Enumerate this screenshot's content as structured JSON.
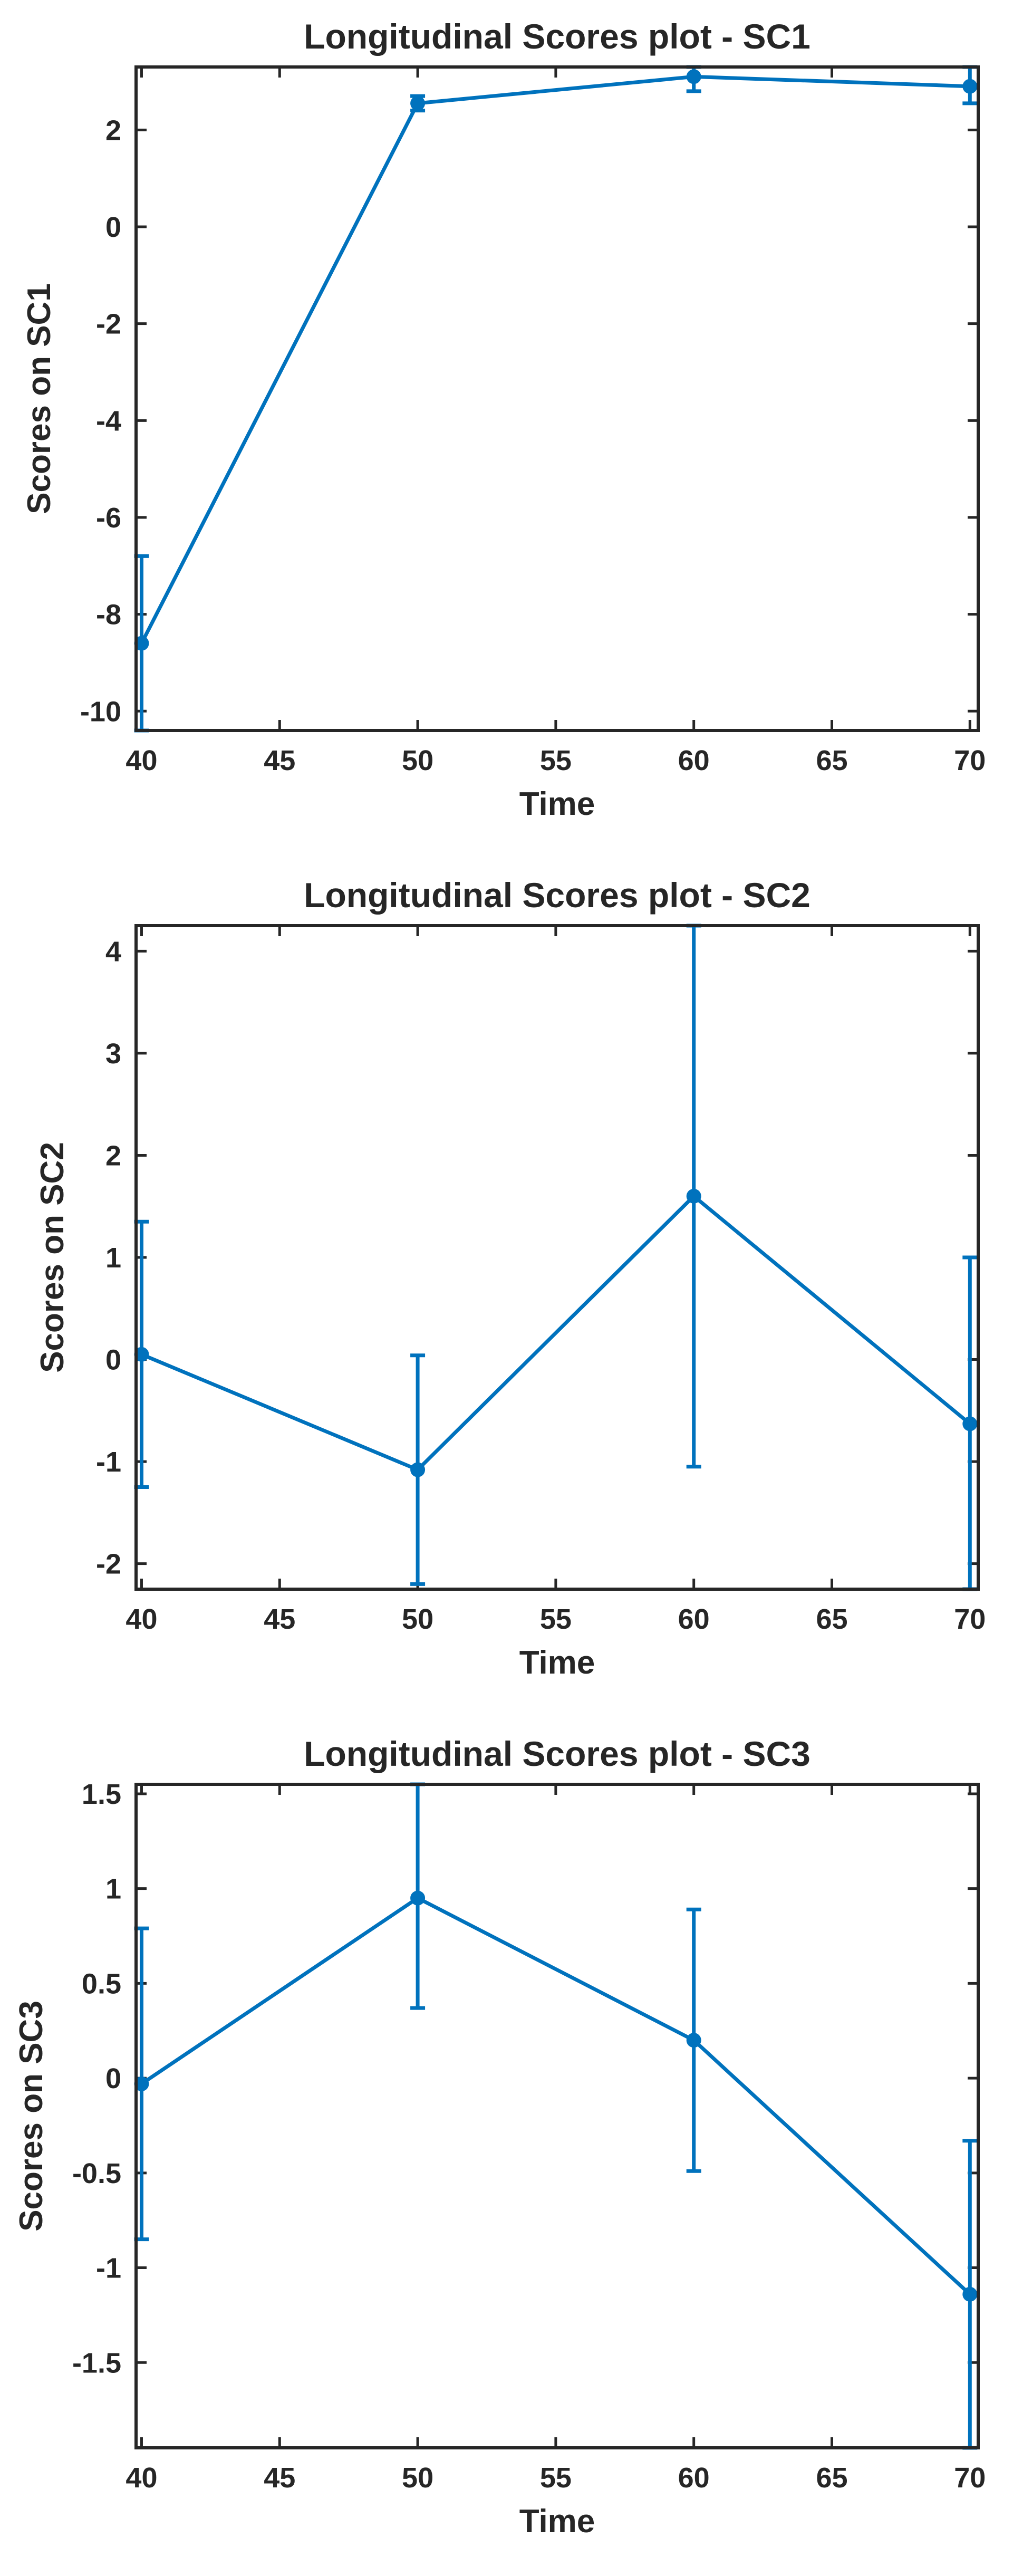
{
  "chart_data": [
    {
      "type": "line",
      "title": "Longitudinal Scores plot - SC1",
      "xlabel": "Time",
      "ylabel": "Scores on SC1",
      "xlim": [
        39.8,
        70.3
      ],
      "ylim": [
        -10.4,
        3.3
      ],
      "xticks": [
        40,
        45,
        50,
        55,
        60,
        65,
        70
      ],
      "xtick_labels": [
        "40",
        "45",
        "50",
        "55",
        "60",
        "65",
        "70"
      ],
      "yticks": [
        -10,
        -8,
        -6,
        -4,
        -2,
        0,
        2
      ],
      "ytick_labels": [
        "-10",
        "-8",
        "-6",
        "-4",
        "-2",
        "0",
        "2"
      ],
      "series": [
        {
          "name": "SC1",
          "x": [
            40,
            50,
            60,
            70
          ],
          "y": [
            -8.6,
            2.55,
            3.1,
            2.9
          ],
          "err_low": [
            -10.4,
            2.4,
            2.8,
            2.55
          ],
          "err_high": [
            -6.8,
            2.7,
            3.3,
            3.3
          ]
        }
      ]
    },
    {
      "type": "line",
      "title": "Longitudinal Scores plot - SC2",
      "xlabel": "Time",
      "ylabel": "Scores on SC2",
      "xlim": [
        39.8,
        70.3
      ],
      "ylim": [
        -2.25,
        4.25
      ],
      "xticks": [
        40,
        45,
        50,
        55,
        60,
        65,
        70
      ],
      "xtick_labels": [
        "40",
        "45",
        "50",
        "55",
        "60",
        "65",
        "70"
      ],
      "yticks": [
        -2,
        -1,
        0,
        1,
        2,
        3,
        4
      ],
      "ytick_labels": [
        "-2",
        "-1",
        "0",
        "1",
        "2",
        "3",
        "4"
      ],
      "series": [
        {
          "name": "SC2",
          "x": [
            40,
            50,
            60,
            70
          ],
          "y": [
            0.05,
            -1.08,
            1.6,
            -0.63
          ],
          "err_low": [
            -1.25,
            -2.2,
            -1.05,
            -2.25
          ],
          "err_high": [
            1.35,
            0.04,
            4.25,
            1.0
          ]
        }
      ]
    },
    {
      "type": "line",
      "title": "Longitudinal Scores plot - SC3",
      "xlabel": "Time",
      "ylabel": "Scores on SC3",
      "xlim": [
        39.8,
        70.3
      ],
      "ylim": [
        -1.95,
        1.55
      ],
      "xticks": [
        40,
        45,
        50,
        55,
        60,
        65,
        70
      ],
      "xtick_labels": [
        "40",
        "45",
        "50",
        "55",
        "60",
        "65",
        "70"
      ],
      "yticks": [
        -1.5,
        -1,
        -0.5,
        0,
        0.5,
        1,
        1.5
      ],
      "ytick_labels": [
        "-1.5",
        "-1",
        "-0.5",
        "0",
        "0.5",
        "1",
        "1.5"
      ],
      "series": [
        {
          "name": "SC3",
          "x": [
            40,
            50,
            60,
            70
          ],
          "y": [
            -0.03,
            0.95,
            0.2,
            -1.14
          ],
          "err_low": [
            -0.85,
            0.37,
            -0.49,
            -1.95
          ],
          "err_high": [
            0.79,
            1.55,
            0.89,
            -0.33
          ]
        }
      ]
    }
  ],
  "colors": {
    "line": "#0072BD",
    "axis": "#262626"
  }
}
